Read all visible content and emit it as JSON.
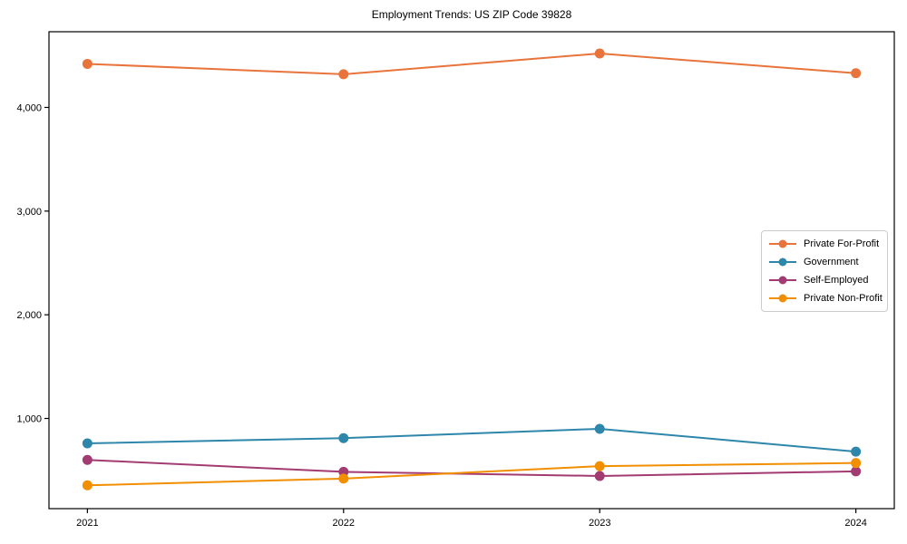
{
  "page": {
    "background": "#ffffff"
  },
  "chart_data": {
    "type": "line",
    "title": "Employment Trends: US ZIP Code 39828",
    "xlabel": "",
    "ylabel": "",
    "grid": false,
    "x": [
      2021,
      2022,
      2023,
      2024
    ],
    "x_tick_labels": [
      "2021",
      "2022",
      "2023",
      "2024"
    ],
    "y_ticks": [
      1000,
      2000,
      3000,
      4000
    ],
    "y_tick_labels": [
      "1,000",
      "2,000",
      "3,000",
      "4,000"
    ],
    "xlim": [
      2020.85,
      2024.15
    ],
    "ylim": [
      130,
      4730
    ],
    "legend_position": "center right",
    "axis_color": "#000000",
    "line_width": 2,
    "marker": "circle",
    "marker_radius": 5.5,
    "series": [
      {
        "name": "Private For-Profit",
        "color": "#e8743b",
        "values": [
          4420,
          4320,
          4520,
          4330
        ]
      },
      {
        "name": "Government",
        "color": "#2e86ab",
        "values": [
          760,
          810,
          900,
          680
        ]
      },
      {
        "name": "Self-Employed",
        "color": "#a23b72",
        "values": [
          600,
          485,
          445,
          490
        ]
      },
      {
        "name": "Private Non-Profit",
        "color": "#f18f01",
        "values": [
          355,
          420,
          540,
          570
        ]
      }
    ]
  }
}
